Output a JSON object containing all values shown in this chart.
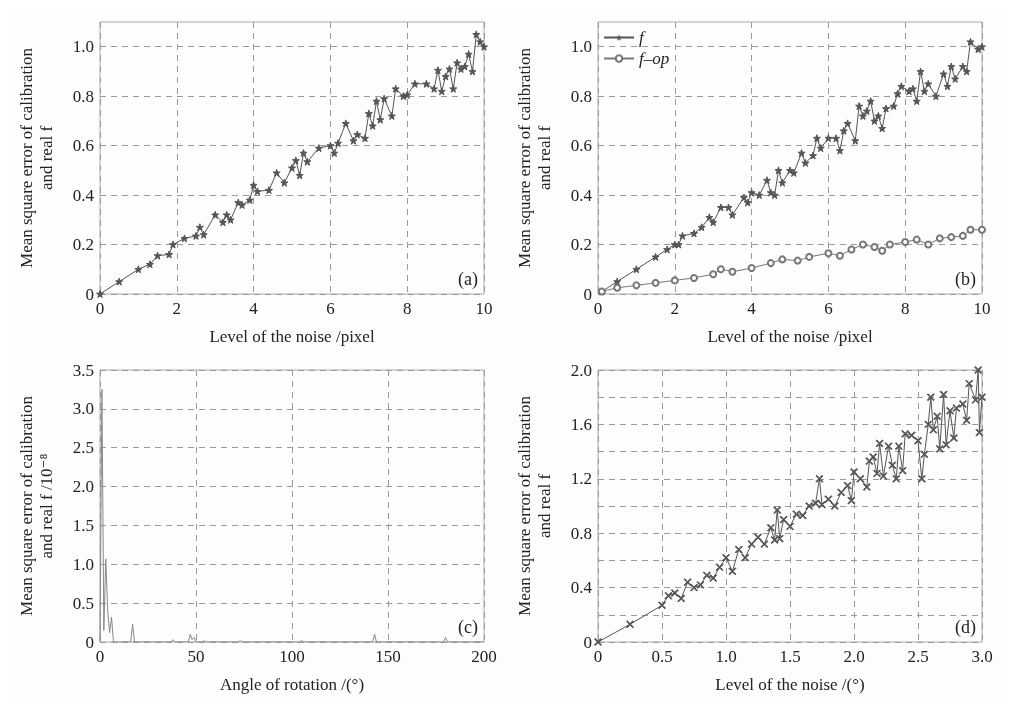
{
  "chart_data": [
    {
      "type": "line",
      "xlabel": "Level of the noise /pixel",
      "ylabel": "Mean square error of calibration\nand real f",
      "xlim": [
        0,
        10
      ],
      "ylim": [
        0,
        1.1
      ],
      "xticks": [
        0,
        2,
        4,
        6,
        8,
        10
      ],
      "yticks": [
        0,
        {
          "value": 0.2,
          "label": "0.2"
        },
        {
          "value": 0.4,
          "label": "0.4"
        },
        {
          "value": 0.6,
          "label": "0.6"
        },
        {
          "value": 0.8,
          "label": "0.8"
        },
        {
          "value": 1,
          "label": "1.0"
        }
      ],
      "grid": true,
      "marker": "star",
      "annotations": [
        "(a)"
      ],
      "series": [
        {
          "color": "#555555",
          "x": [
            0,
            0.5,
            1,
            1.3,
            1.5,
            1.8,
            1.9,
            2.2,
            2.5,
            2.6,
            2.7,
            3.0,
            3.2,
            3.3,
            3.4,
            3.6,
            3.7,
            3.9,
            4.0,
            4.1,
            4.4,
            4.6,
            4.8,
            5.0,
            5.1,
            5.2,
            5.3,
            5.4,
            5.7,
            6.0,
            6.1,
            6.2,
            6.4,
            6.6,
            6.7,
            6.9,
            7.0,
            7.1,
            7.2,
            7.3,
            7.4,
            7.6,
            7.7,
            7.9,
            8.0,
            8.2,
            8.5,
            8.7,
            8.8,
            8.9,
            9.0,
            9.1,
            9.2,
            9.3,
            9.4,
            9.5,
            9.6,
            9.7,
            9.8,
            9.9,
            10
          ],
          "values": [
            0,
            0.05,
            0.1,
            0.12,
            0.155,
            0.16,
            0.2,
            0.225,
            0.235,
            0.27,
            0.24,
            0.32,
            0.29,
            0.32,
            0.3,
            0.37,
            0.36,
            0.38,
            0.44,
            0.415,
            0.42,
            0.49,
            0.45,
            0.51,
            0.54,
            0.48,
            0.57,
            0.535,
            0.59,
            0.6,
            0.57,
            0.61,
            0.69,
            0.62,
            0.645,
            0.63,
            0.73,
            0.68,
            0.78,
            0.705,
            0.79,
            0.72,
            0.83,
            0.8,
            0.805,
            0.85,
            0.85,
            0.83,
            0.905,
            0.82,
            0.88,
            0.91,
            0.83,
            0.935,
            0.91,
            0.92,
            0.97,
            0.9,
            1.05,
            1.02,
            1.0
          ]
        }
      ]
    },
    {
      "type": "line",
      "xlabel": "Level of the noise /pixel",
      "ylabel": "Mean square error of calibration\nand real f",
      "xlim": [
        0,
        10
      ],
      "ylim": [
        0,
        1.1
      ],
      "xticks": [
        0,
        2,
        4,
        6,
        8,
        10
      ],
      "yticks": [
        0,
        {
          "value": 0.2,
          "label": "0.2"
        },
        {
          "value": 0.4,
          "label": "0.4"
        },
        {
          "value": 0.6,
          "label": "0.6"
        },
        {
          "value": 0.8,
          "label": "0.8"
        },
        {
          "value": 1,
          "label": "1.0"
        }
      ],
      "grid": true,
      "marker": "star",
      "legend": "top left",
      "annotations": [
        "(b)"
      ],
      "series": [
        {
          "name": "f",
          "color": "#555555",
          "x": [
            0.1,
            0.5,
            1,
            1.5,
            1.8,
            2.0,
            2.1,
            2.2,
            2.5,
            2.7,
            2.9,
            3.0,
            3.2,
            3.4,
            3.5,
            3.8,
            3.9,
            4.0,
            4.2,
            4.4,
            4.5,
            4.6,
            4.7,
            4.8,
            5.0,
            5.1,
            5.3,
            5.4,
            5.6,
            5.7,
            5.8,
            6.0,
            6.2,
            6.3,
            6.4,
            6.5,
            6.7,
            6.8,
            6.9,
            7.0,
            7.1,
            7.2,
            7.3,
            7.4,
            7.5,
            7.7,
            7.8,
            7.9,
            8.1,
            8.2,
            8.3,
            8.4,
            8.5,
            8.6,
            8.8,
            9.0,
            9.1,
            9.2,
            9.3,
            9.5,
            9.6,
            9.7,
            9.9,
            10
          ],
          "values": [
            0.01,
            0.05,
            0.1,
            0.15,
            0.18,
            0.2,
            0.2,
            0.235,
            0.245,
            0.27,
            0.31,
            0.29,
            0.35,
            0.35,
            0.32,
            0.39,
            0.37,
            0.41,
            0.4,
            0.46,
            0.41,
            0.4,
            0.5,
            0.45,
            0.5,
            0.49,
            0.57,
            0.53,
            0.56,
            0.63,
            0.59,
            0.63,
            0.63,
            0.58,
            0.66,
            0.69,
            0.62,
            0.76,
            0.72,
            0.74,
            0.78,
            0.7,
            0.72,
            0.67,
            0.75,
            0.76,
            0.81,
            0.84,
            0.82,
            0.83,
            0.78,
            0.9,
            0.82,
            0.85,
            0.8,
            0.89,
            0.84,
            0.92,
            0.87,
            0.92,
            0.9,
            1.02,
            0.99,
            1.0
          ]
        },
        {
          "name": "f–op",
          "color": "#777777",
          "marker": "circle",
          "x": [
            0.1,
            0.5,
            1,
            1.5,
            2.0,
            2.5,
            3.0,
            3.2,
            3.5,
            4.0,
            4.5,
            4.8,
            5.2,
            5.5,
            6.0,
            6.3,
            6.6,
            6.9,
            7.2,
            7.4,
            7.6,
            8.0,
            8.3,
            8.6,
            8.9,
            9.2,
            9.5,
            9.7,
            10
          ],
          "values": [
            0.01,
            0.025,
            0.035,
            0.045,
            0.055,
            0.065,
            0.08,
            0.1,
            0.09,
            0.105,
            0.125,
            0.14,
            0.135,
            0.15,
            0.165,
            0.155,
            0.18,
            0.2,
            0.19,
            0.175,
            0.2,
            0.21,
            0.22,
            0.2,
            0.225,
            0.23,
            0.235,
            0.26,
            0.26
          ]
        }
      ]
    },
    {
      "type": "line",
      "xlabel": "Angle of rotation /(°)",
      "ylabel": "Mean square error of calibration\nand real f /10⁻⁸",
      "xlim": [
        0,
        200
      ],
      "ylim": [
        0,
        3.5
      ],
      "xticks": [
        0,
        50,
        100,
        150,
        200
      ],
      "yticks": [
        0,
        0.5,
        {
          "value": 1,
          "label": "1.0"
        },
        1.5,
        {
          "value": 2,
          "label": "2.0"
        },
        2.5,
        {
          "value": 3,
          "label": "3.0"
        },
        3.5
      ],
      "grid": true,
      "marker": "none",
      "annotations": [
        "(c)"
      ],
      "series": [
        {
          "color": "#888888",
          "x": [
            0,
            1,
            2,
            3,
            4,
            5,
            6,
            7,
            16,
            17,
            18,
            37,
            38,
            39,
            46,
            47,
            48,
            49,
            50,
            53,
            54,
            55,
            72,
            73,
            74,
            104,
            105,
            106,
            142,
            143,
            144,
            179,
            180,
            181,
            200
          ],
          "values": [
            0,
            3.25,
            0.15,
            1.07,
            0.4,
            0.12,
            0.32,
            0,
            0,
            0.23,
            0,
            0,
            0.03,
            0,
            0,
            0.1,
            0.03,
            0.06,
            0,
            0,
            0.02,
            0,
            0,
            0.02,
            0,
            0,
            0.02,
            0,
            0,
            0.1,
            0,
            0,
            0.06,
            0,
            0
          ]
        }
      ]
    },
    {
      "type": "line",
      "xlabel": "Level of the noise /(°)",
      "ylabel": "Mean square error of calibration\nand real f",
      "xlim": [
        0,
        3
      ],
      "ylim": [
        0,
        2
      ],
      "xticks": [
        0,
        0.5,
        {
          "value": 1,
          "label": "1.0"
        },
        1.5,
        {
          "value": 2,
          "label": "2.0"
        },
        2.5,
        {
          "value": 3,
          "label": "3.0"
        }
      ],
      "yticks": [
        0,
        {
          "value": 0.2,
          "label": null
        },
        0.4,
        {
          "value": 0.6,
          "label": null
        },
        0.8,
        {
          "value": 1,
          "label": null
        },
        1.2,
        {
          "value": 1.4,
          "label": null
        },
        1.6,
        {
          "value": 1.8,
          "label": null
        },
        {
          "value": 2,
          "label": "2.0"
        }
      ],
      "grid": true,
      "marker": "cross",
      "annotations": [
        "(d)"
      ],
      "series": [
        {
          "color": "#555555",
          "x": [
            0,
            0.25,
            0.5,
            0.55,
            0.6,
            0.65,
            0.7,
            0.75,
            0.8,
            0.85,
            0.9,
            0.95,
            1.0,
            1.05,
            1.1,
            1.15,
            1.2,
            1.25,
            1.3,
            1.35,
            1.38,
            1.4,
            1.42,
            1.45,
            1.5,
            1.55,
            1.6,
            1.65,
            1.7,
            1.73,
            1.75,
            1.8,
            1.85,
            1.9,
            1.95,
            1.98,
            2.0,
            2.05,
            2.1,
            2.12,
            2.15,
            2.18,
            2.2,
            2.23,
            2.27,
            2.3,
            2.33,
            2.35,
            2.38,
            2.4,
            2.45,
            2.5,
            2.53,
            2.55,
            2.58,
            2.6,
            2.62,
            2.65,
            2.67,
            2.7,
            2.72,
            2.75,
            2.78,
            2.8,
            2.85,
            2.88,
            2.9,
            2.95,
            2.97,
            2.98,
            3.0
          ],
          "values": [
            0,
            0.13,
            0.27,
            0.34,
            0.36,
            0.32,
            0.44,
            0.4,
            0.42,
            0.49,
            0.47,
            0.55,
            0.62,
            0.52,
            0.68,
            0.62,
            0.72,
            0.77,
            0.72,
            0.84,
            0.75,
            0.97,
            0.76,
            0.9,
            0.85,
            0.94,
            0.93,
            1.0,
            1.02,
            1.2,
            1.01,
            1.05,
            1.0,
            1.1,
            1.15,
            1.04,
            1.25,
            1.2,
            1.14,
            1.33,
            1.36,
            1.24,
            1.46,
            1.22,
            1.44,
            1.3,
            1.2,
            1.44,
            1.26,
            1.53,
            1.52,
            1.48,
            1.2,
            1.38,
            1.6,
            1.8,
            1.56,
            1.66,
            1.42,
            1.82,
            1.45,
            1.7,
            1.5,
            1.72,
            1.75,
            1.63,
            1.9,
            1.78,
            2.0,
            1.54,
            1.8
          ]
        }
      ]
    }
  ]
}
